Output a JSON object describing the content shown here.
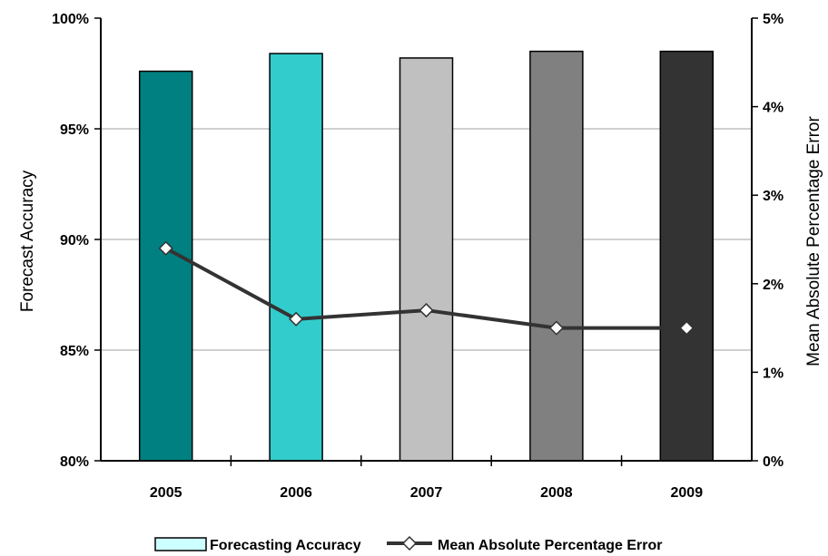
{
  "chart_data": {
    "type": "bar",
    "categories": [
      "2005",
      "2006",
      "2007",
      "2008",
      "2009"
    ],
    "series": [
      {
        "name": "Forecasting Accuracy",
        "type": "bar",
        "axis": "left",
        "values": [
          97.6,
          98.4,
          98.2,
          98.5,
          98.5
        ],
        "colors": [
          "#008080",
          "#33cccc",
          "#c0c0c0",
          "#808080",
          "#333333"
        ]
      },
      {
        "name": "Mean Absolute Percentage Error",
        "type": "line",
        "axis": "right",
        "values": [
          2.4,
          1.6,
          1.7,
          1.5,
          1.5
        ],
        "color": "#333333",
        "marker": "diamond"
      }
    ],
    "ylabel": "Forecast Accuracy",
    "ylim": [
      80,
      100
    ],
    "yticks": [
      "80%",
      "85%",
      "90%",
      "95%",
      "100%"
    ],
    "ylabel_right": "Mean Absolute Percentage Error",
    "ylim_right": [
      0,
      5
    ],
    "yticks_right": [
      "0%",
      "1%",
      "2%",
      "3%",
      "4%",
      "5%"
    ],
    "grid": true,
    "legend_position": "bottom",
    "legend_bar_color": "#ccffff"
  }
}
